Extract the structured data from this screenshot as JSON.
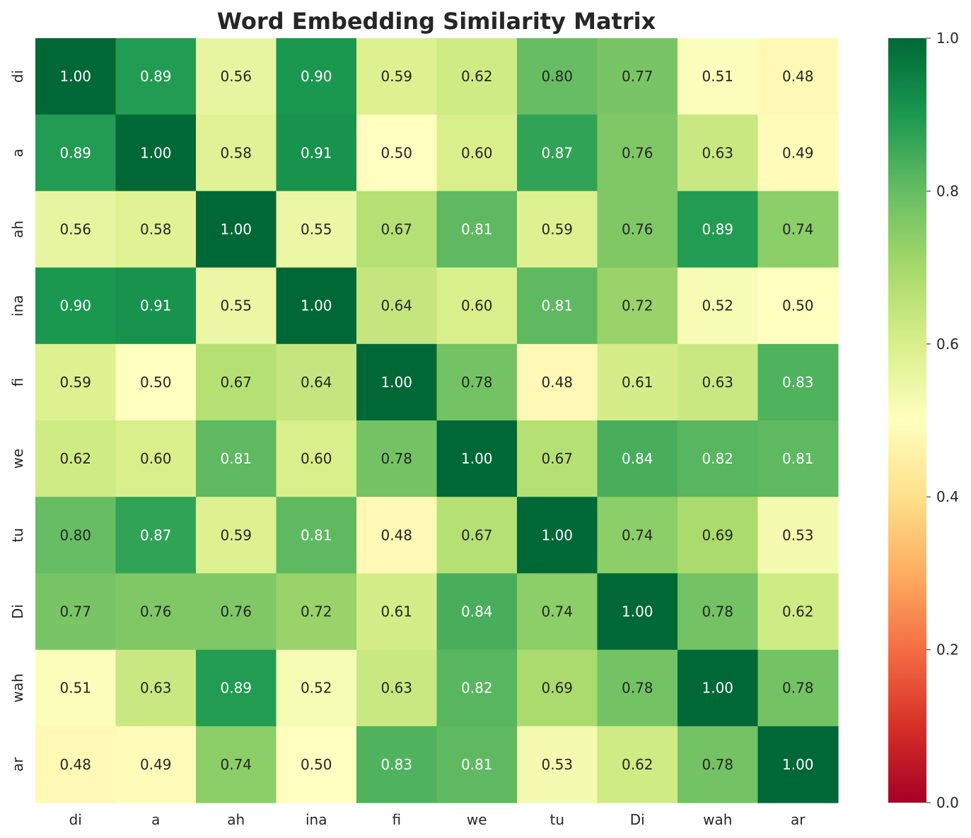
{
  "chart_data": {
    "type": "heatmap",
    "title": "Word Embedding Similarity Matrix",
    "xlabel": "",
    "ylabel": "",
    "x_labels": [
      "di",
      "a",
      "ah",
      "ina",
      "fi",
      "we",
      "tu",
      "Di",
      "wah",
      "ar"
    ],
    "y_labels": [
      "di",
      "a",
      "ah",
      "ina",
      "fi",
      "we",
      "tu",
      "Di",
      "wah",
      "ar"
    ],
    "values": [
      [
        1.0,
        0.89,
        0.56,
        0.9,
        0.59,
        0.62,
        0.8,
        0.77,
        0.51,
        0.48
      ],
      [
        0.89,
        1.0,
        0.58,
        0.91,
        0.5,
        0.6,
        0.87,
        0.76,
        0.63,
        0.49
      ],
      [
        0.56,
        0.58,
        1.0,
        0.55,
        0.67,
        0.81,
        0.59,
        0.76,
        0.89,
        0.74
      ],
      [
        0.9,
        0.91,
        0.55,
        1.0,
        0.64,
        0.6,
        0.81,
        0.72,
        0.52,
        0.5
      ],
      [
        0.59,
        0.5,
        0.67,
        0.64,
        1.0,
        0.78,
        0.48,
        0.61,
        0.63,
        0.83
      ],
      [
        0.62,
        0.6,
        0.81,
        0.6,
        0.78,
        1.0,
        0.67,
        0.84,
        0.82,
        0.81
      ],
      [
        0.8,
        0.87,
        0.59,
        0.81,
        0.48,
        0.67,
        1.0,
        0.74,
        0.69,
        0.53
      ],
      [
        0.77,
        0.76,
        0.76,
        0.72,
        0.61,
        0.84,
        0.74,
        1.0,
        0.78,
        0.62
      ],
      [
        0.51,
        0.63,
        0.89,
        0.52,
        0.63,
        0.82,
        0.69,
        0.78,
        1.0,
        0.78
      ],
      [
        0.48,
        0.49,
        0.74,
        0.5,
        0.83,
        0.81,
        0.53,
        0.62,
        0.78,
        1.0
      ]
    ],
    "value_format_decimals": 2,
    "colormap": "RdYlGn",
    "vmin": 0.0,
    "vmax": 1.0,
    "colorbar_ticks": [
      "0.0",
      "0.2",
      "0.4",
      "0.6",
      "0.8",
      "1.0"
    ],
    "colorbar_tick_values": [
      0.0,
      0.2,
      0.4,
      0.6,
      0.8,
      1.0
    ],
    "colorbar_placement": "right",
    "grid": false
  }
}
